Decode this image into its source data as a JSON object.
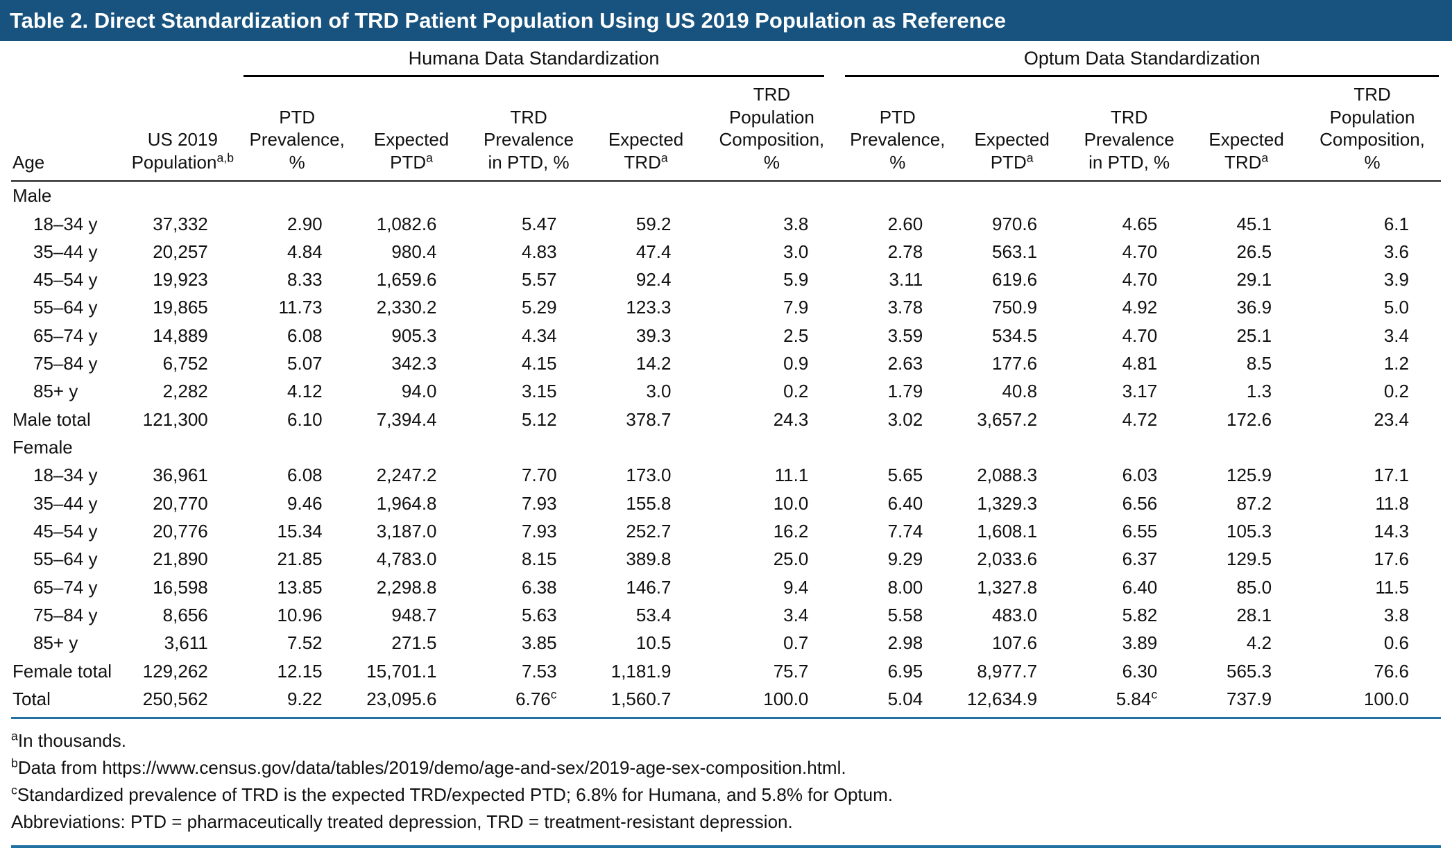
{
  "title": "Table 2. Direct Standardization of TRD Patient Population Using US 2019 Population as Reference",
  "colors": {
    "title_bar_bg": "#17537e",
    "title_text": "#ffffff",
    "header_rule_black": "#1a1a1a",
    "rule_blue": "#2172a3"
  },
  "table": {
    "groups": [
      {
        "label": "Humana Data Standardization"
      },
      {
        "label": "Optum Data Standardization"
      }
    ],
    "columns": [
      {
        "id": "age",
        "label": "Age"
      },
      {
        "id": "us-2019-population",
        "label": "US 2019\nPopulation^a,b"
      },
      {
        "id": "humana-ptd-prevalence-pct",
        "label": "PTD\nPrevalence,\n%"
      },
      {
        "id": "humana-expected-ptd",
        "label": "Expected\nPTD^a"
      },
      {
        "id": "humana-trd-prevalence-in-ptd-pct",
        "label": "TRD\nPrevalence\nin PTD, %"
      },
      {
        "id": "humana-expected-trd",
        "label": "Expected\nTRD^a"
      },
      {
        "id": "humana-trd-population-composition-pct",
        "label": "TRD\nPopulation\nComposition,\n%"
      },
      {
        "id": "optum-ptd-prevalence-pct",
        "label": "PTD\nPrevalence,\n%"
      },
      {
        "id": "optum-expected-ptd",
        "label": "Expected\nPTD^a"
      },
      {
        "id": "optum-trd-prevalence-in-ptd-pct",
        "label": "TRD\nPrevalence\nin PTD, %"
      },
      {
        "id": "optum-expected-trd",
        "label": "Expected\nTRD^a"
      },
      {
        "id": "optum-trd-population-composition-pct",
        "label": "TRD\nPopulation\nComposition,\n%"
      }
    ],
    "rows": [
      {
        "type": "section",
        "label": "Male"
      },
      {
        "type": "data",
        "label": "18–34 y",
        "cells": [
          "37,332",
          "2.90",
          "1,082.6",
          "5.47",
          "59.2",
          "3.8",
          "2.60",
          "970.6",
          "4.65",
          "45.1",
          "6.1"
        ]
      },
      {
        "type": "data",
        "label": "35–44 y",
        "cells": [
          "20,257",
          "4.84",
          "980.4",
          "4.83",
          "47.4",
          "3.0",
          "2.78",
          "563.1",
          "4.70",
          "26.5",
          "3.6"
        ]
      },
      {
        "type": "data",
        "label": "45–54 y",
        "cells": [
          "19,923",
          "8.33",
          "1,659.6",
          "5.57",
          "92.4",
          "5.9",
          "3.11",
          "619.6",
          "4.70",
          "29.1",
          "3.9"
        ]
      },
      {
        "type": "data",
        "label": "55–64 y",
        "cells": [
          "19,865",
          "11.73",
          "2,330.2",
          "5.29",
          "123.3",
          "7.9",
          "3.78",
          "750.9",
          "4.92",
          "36.9",
          "5.0"
        ]
      },
      {
        "type": "data",
        "label": "65–74 y",
        "cells": [
          "14,889",
          "6.08",
          "905.3",
          "4.34",
          "39.3",
          "2.5",
          "3.59",
          "534.5",
          "4.70",
          "25.1",
          "3.4"
        ]
      },
      {
        "type": "data",
        "label": "75–84 y",
        "cells": [
          "6,752",
          "5.07",
          "342.3",
          "4.15",
          "14.2",
          "0.9",
          "2.63",
          "177.6",
          "4.81",
          "8.5",
          "1.2"
        ]
      },
      {
        "type": "data",
        "label": "85+ y",
        "cells": [
          "2,282",
          "4.12",
          "94.0",
          "3.15",
          "3.0",
          "0.2",
          "1.79",
          "40.8",
          "3.17",
          "1.3",
          "0.2"
        ]
      },
      {
        "type": "total",
        "label": "Male total",
        "cells": [
          "121,300",
          "6.10",
          "7,394.4",
          "5.12",
          "378.7",
          "24.3",
          "3.02",
          "3,657.2",
          "4.72",
          "172.6",
          "23.4"
        ]
      },
      {
        "type": "section",
        "label": "Female"
      },
      {
        "type": "data",
        "label": "18–34 y",
        "cells": [
          "36,961",
          "6.08",
          "2,247.2",
          "7.70",
          "173.0",
          "11.1",
          "5.65",
          "2,088.3",
          "6.03",
          "125.9",
          "17.1"
        ]
      },
      {
        "type": "data",
        "label": "35–44 y",
        "cells": [
          "20,770",
          "9.46",
          "1,964.8",
          "7.93",
          "155.8",
          "10.0",
          "6.40",
          "1,329.3",
          "6.56",
          "87.2",
          "11.8"
        ]
      },
      {
        "type": "data",
        "label": "45–54 y",
        "cells": [
          "20,776",
          "15.34",
          "3,187.0",
          "7.93",
          "252.7",
          "16.2",
          "7.74",
          "1,608.1",
          "6.55",
          "105.3",
          "14.3"
        ]
      },
      {
        "type": "data",
        "label": "55–64 y",
        "cells": [
          "21,890",
          "21.85",
          "4,783.0",
          "8.15",
          "389.8",
          "25.0",
          "9.29",
          "2,033.6",
          "6.37",
          "129.5",
          "17.6"
        ]
      },
      {
        "type": "data",
        "label": "65–74 y",
        "cells": [
          "16,598",
          "13.85",
          "2,298.8",
          "6.38",
          "146.7",
          "9.4",
          "8.00",
          "1,327.8",
          "6.40",
          "85.0",
          "11.5"
        ]
      },
      {
        "type": "data",
        "label": "75–84 y",
        "cells": [
          "8,656",
          "10.96",
          "948.7",
          "5.63",
          "53.4",
          "3.4",
          "5.58",
          "483.0",
          "5.82",
          "28.1",
          "3.8"
        ]
      },
      {
        "type": "data",
        "label": "85+ y",
        "cells": [
          "3,611",
          "7.52",
          "271.5",
          "3.85",
          "10.5",
          "0.7",
          "2.98",
          "107.6",
          "3.89",
          "4.2",
          "0.6"
        ]
      },
      {
        "type": "total",
        "label": "Female total",
        "cells": [
          "129,262",
          "12.15",
          "15,701.1",
          "7.53",
          "1,181.9",
          "75.7",
          "6.95",
          "8,977.7",
          "6.30",
          "565.3",
          "76.6"
        ]
      },
      {
        "type": "total",
        "label": "Total",
        "cells": [
          "250,562",
          "9.22",
          "23,095.6",
          "6.76^c",
          "1,560.7",
          "100.0",
          "5.04",
          "12,634.9",
          "5.84^c",
          "737.9",
          "100.0"
        ]
      }
    ]
  },
  "footnotes": [
    {
      "sup": "a",
      "text": "In thousands."
    },
    {
      "sup": "b",
      "text": "Data from https://www.census.gov/data/tables/2019/demo/age-and-sex/2019-age-sex-composition.html."
    },
    {
      "sup": "c",
      "text": "Standardized prevalence of TRD is the expected TRD/expected PTD; 6.8% for Humana, and 5.8% for Optum."
    },
    {
      "sup": "",
      "text": "Abbreviations: PTD = pharmaceutically treated depression, TRD = treatment-resistant depression."
    }
  ]
}
